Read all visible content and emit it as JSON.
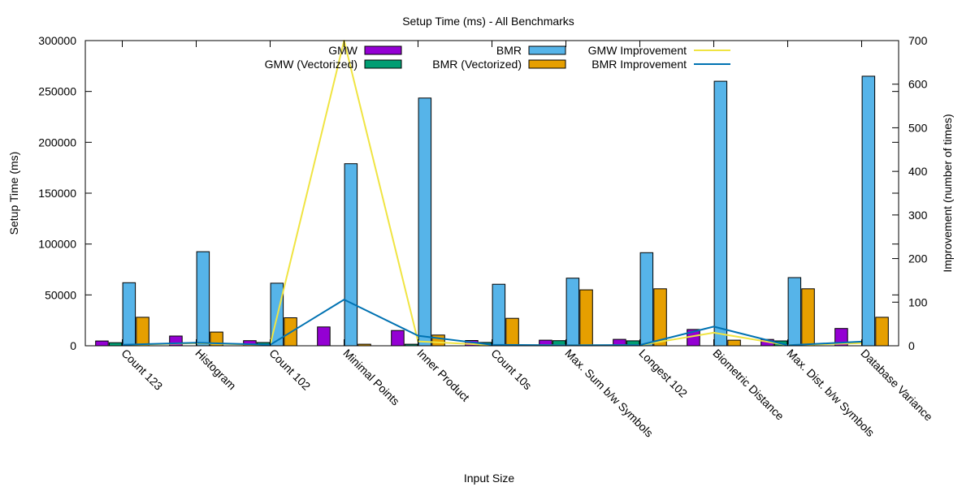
{
  "chart_data": {
    "type": "bar",
    "title": "Setup Time (ms) - All Benchmarks",
    "xlabel": "Input Size",
    "ylabel": "Setup Time (ms)",
    "y2label": "Improvement (number of times)",
    "ylim": [
      0,
      300000
    ],
    "y2lim": [
      0,
      700
    ],
    "yticks": [
      "0",
      "50000",
      "100000",
      "150000",
      "200000",
      "250000",
      "300000"
    ],
    "y2ticks": [
      "0",
      "100",
      "200",
      "300",
      "400",
      "500",
      "600",
      "700"
    ],
    "legend_position": "top",
    "categories": [
      "Count 123",
      "Histogram",
      "Count 102",
      "Minimal Points",
      "Inner Product",
      "Count 10s",
      "Max. Sum b/w Symbols",
      "Longest 102",
      "Biometric Distance",
      "Max. Dist. b/w Symbols",
      "Database Variance"
    ],
    "series": [
      {
        "name": "GMW",
        "kind": "bar",
        "color": "#9400d3",
        "values": [
          4700,
          9600,
          5000,
          18500,
          15000,
          5200,
          5500,
          6300,
          16000,
          6200,
          17000
        ]
      },
      {
        "name": "GMW (Vectorized)",
        "kind": "bar",
        "color": "#009e73",
        "values": [
          3000,
          0,
          3200,
          0,
          1500,
          3300,
          5000,
          4900,
          0,
          4800,
          0
        ]
      },
      {
        "name": "BMR",
        "kind": "bar",
        "color": "#56b4e9",
        "values": [
          62000,
          92500,
          61500,
          179000,
          243500,
          60500,
          66500,
          91500,
          260000,
          67000,
          265000
        ]
      },
      {
        "name": "BMR (Vectorized)",
        "kind": "bar",
        "color": "#e69f00",
        "values": [
          28000,
          13500,
          27500,
          1500,
          10500,
          27000,
          55000,
          56000,
          5500,
          56000,
          28000
        ]
      },
      {
        "name": "GMW Improvement",
        "kind": "line",
        "axis": "y2",
        "color": "#f0e442",
        "values": [
          1.6,
          6,
          1.6,
          700,
          10,
          1.6,
          1.1,
          1.3,
          30,
          1.3,
          6
        ]
      },
      {
        "name": "BMR Improvement",
        "kind": "line",
        "axis": "y2",
        "color": "#0072b2",
        "values": [
          2.2,
          6.9,
          2.2,
          106,
          23,
          2.2,
          1.2,
          1.6,
          44,
          1.2,
          9.5
        ]
      }
    ]
  }
}
